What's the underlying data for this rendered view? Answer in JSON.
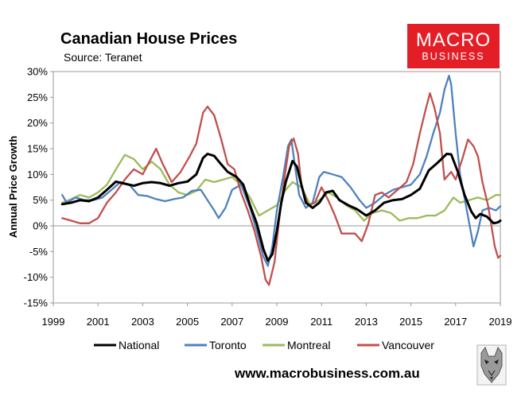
{
  "header": {
    "title": "Canadian House Prices",
    "subtitle": "Source: Teranet"
  },
  "logo": {
    "line1": "MACRO",
    "line2": "BUSINESS",
    "color": "#e41e26"
  },
  "footer": {
    "website": "www.macrobusiness.com.au"
  },
  "chart_data": {
    "type": "line",
    "title": "Canadian House Prices",
    "ylabel": "Annual Price Growth",
    "xlim": [
      1999,
      2019
    ],
    "ylim": [
      -15,
      30
    ],
    "xticks": [
      1999,
      2001,
      2003,
      2005,
      2007,
      2009,
      2011,
      2013,
      2015,
      2017,
      2019
    ],
    "yticks": [
      30,
      25,
      20,
      15,
      10,
      5,
      0,
      -5,
      -10,
      -15
    ],
    "ytick_labels": [
      "30%",
      "25%",
      "20%",
      "15%",
      "10%",
      "5%",
      "0%",
      "-5%",
      "-10%",
      "-15%"
    ],
    "grid": false,
    "legend_position": "bottom",
    "series": [
      {
        "name": "National",
        "color": "#000000",
        "points": [
          [
            1999.4,
            4.2
          ],
          [
            1999.8,
            4.5
          ],
          [
            2000.2,
            5.0
          ],
          [
            2000.6,
            4.8
          ],
          [
            2001.0,
            5.5
          ],
          [
            2001.4,
            7.0
          ],
          [
            2001.8,
            8.6
          ],
          [
            2002.2,
            8.2
          ],
          [
            2002.6,
            7.8
          ],
          [
            2003.0,
            8.3
          ],
          [
            2003.4,
            8.5
          ],
          [
            2003.8,
            8.3
          ],
          [
            2004.2,
            7.8
          ],
          [
            2004.6,
            8.3
          ],
          [
            2005.0,
            8.6
          ],
          [
            2005.4,
            10.0
          ],
          [
            2005.7,
            13.2
          ],
          [
            2005.9,
            14.0
          ],
          [
            2006.2,
            13.6
          ],
          [
            2006.5,
            12.0
          ],
          [
            2006.8,
            10.5
          ],
          [
            2007.2,
            9.5
          ],
          [
            2007.5,
            8.0
          ],
          [
            2007.8,
            4.0
          ],
          [
            2008.1,
            0.5
          ],
          [
            2008.4,
            -4.5
          ],
          [
            2008.6,
            -6.8
          ],
          [
            2008.8,
            -5.5
          ],
          [
            2009.0,
            -1.0
          ],
          [
            2009.2,
            4.5
          ],
          [
            2009.4,
            8.5
          ],
          [
            2009.7,
            12.6
          ],
          [
            2009.9,
            11.5
          ],
          [
            2010.1,
            8.0
          ],
          [
            2010.3,
            4.5
          ],
          [
            2010.6,
            3.5
          ],
          [
            2010.9,
            4.5
          ],
          [
            2011.2,
            6.5
          ],
          [
            2011.5,
            6.8
          ],
          [
            2011.8,
            5.0
          ],
          [
            2012.2,
            4.0
          ],
          [
            2012.6,
            3.2
          ],
          [
            2013.0,
            2.0
          ],
          [
            2013.4,
            3.0
          ],
          [
            2013.8,
            4.5
          ],
          [
            2014.2,
            5.0
          ],
          [
            2014.6,
            5.2
          ],
          [
            2015.0,
            6.0
          ],
          [
            2015.4,
            7.2
          ],
          [
            2015.8,
            10.8
          ],
          [
            2016.2,
            12.3
          ],
          [
            2016.6,
            14.0
          ],
          [
            2016.8,
            13.9
          ],
          [
            2017.1,
            10.5
          ],
          [
            2017.4,
            6.0
          ],
          [
            2017.7,
            2.8
          ],
          [
            2017.9,
            1.5
          ],
          [
            2018.1,
            2.3
          ],
          [
            2018.4,
            1.8
          ],
          [
            2018.7,
            0.5
          ],
          [
            2018.9,
            0.7
          ],
          [
            2019.0,
            1.0
          ]
        ]
      },
      {
        "name": "Toronto",
        "color": "#4f81bd",
        "points": [
          [
            1999.4,
            6.0
          ],
          [
            1999.6,
            4.5
          ],
          [
            2000.0,
            5.5
          ],
          [
            2000.4,
            5.0
          ],
          [
            2000.8,
            5.0
          ],
          [
            2001.2,
            5.5
          ],
          [
            2001.6,
            7.0
          ],
          [
            2002.0,
            8.5
          ],
          [
            2002.4,
            8.0
          ],
          [
            2002.8,
            6.0
          ],
          [
            2003.2,
            5.8
          ],
          [
            2003.6,
            5.2
          ],
          [
            2004.0,
            4.8
          ],
          [
            2004.4,
            5.2
          ],
          [
            2004.8,
            5.5
          ],
          [
            2005.2,
            6.8
          ],
          [
            2005.6,
            7.0
          ],
          [
            2005.9,
            5.0
          ],
          [
            2006.2,
            3.0
          ],
          [
            2006.4,
            1.5
          ],
          [
            2006.7,
            3.5
          ],
          [
            2007.0,
            7.0
          ],
          [
            2007.4,
            8.0
          ],
          [
            2007.8,
            3.5
          ],
          [
            2008.1,
            -1.0
          ],
          [
            2008.4,
            -6.0
          ],
          [
            2008.6,
            -7.8
          ],
          [
            2008.8,
            -4.0
          ],
          [
            2009.0,
            3.0
          ],
          [
            2009.3,
            10.0
          ],
          [
            2009.5,
            15.5
          ],
          [
            2009.65,
            16.8
          ],
          [
            2009.8,
            12.0
          ],
          [
            2010.0,
            6.0
          ],
          [
            2010.3,
            3.5
          ],
          [
            2010.6,
            4.5
          ],
          [
            2010.9,
            9.5
          ],
          [
            2011.1,
            10.5
          ],
          [
            2011.5,
            10.0
          ],
          [
            2011.9,
            9.5
          ],
          [
            2012.3,
            7.5
          ],
          [
            2012.7,
            5.0
          ],
          [
            2013.0,
            3.5
          ],
          [
            2013.4,
            4.5
          ],
          [
            2013.8,
            6.0
          ],
          [
            2014.2,
            7.0
          ],
          [
            2014.6,
            7.5
          ],
          [
            2015.0,
            8.0
          ],
          [
            2015.4,
            10.0
          ],
          [
            2015.7,
            13.5
          ],
          [
            2016.0,
            18.0
          ],
          [
            2016.3,
            22.0
          ],
          [
            2016.5,
            26.5
          ],
          [
            2016.7,
            29.2
          ],
          [
            2016.8,
            27.5
          ],
          [
            2017.0,
            18.0
          ],
          [
            2017.2,
            10.0
          ],
          [
            2017.5,
            3.0
          ],
          [
            2017.8,
            -4.0
          ],
          [
            2018.0,
            -1.0
          ],
          [
            2018.2,
            3.0
          ],
          [
            2018.5,
            3.5
          ],
          [
            2018.8,
            3.0
          ],
          [
            2019.0,
            3.8
          ]
        ]
      },
      {
        "name": "Montreal",
        "color": "#9bbb59",
        "points": [
          [
            1999.4,
            4.5
          ],
          [
            1999.8,
            5.2
          ],
          [
            2000.2,
            6.0
          ],
          [
            2000.6,
            5.5
          ],
          [
            2001.0,
            6.5
          ],
          [
            2001.4,
            8.0
          ],
          [
            2001.8,
            11.0
          ],
          [
            2002.2,
            13.8
          ],
          [
            2002.6,
            13.0
          ],
          [
            2003.0,
            11.0
          ],
          [
            2003.4,
            12.5
          ],
          [
            2003.8,
            11.0
          ],
          [
            2004.2,
            8.0
          ],
          [
            2004.6,
            6.5
          ],
          [
            2005.0,
            6.0
          ],
          [
            2005.4,
            6.8
          ],
          [
            2005.8,
            9.0
          ],
          [
            2006.2,
            8.5
          ],
          [
            2006.6,
            9.0
          ],
          [
            2007.0,
            9.5
          ],
          [
            2007.4,
            8.0
          ],
          [
            2007.8,
            5.5
          ],
          [
            2008.2,
            2.0
          ],
          [
            2008.6,
            3.0
          ],
          [
            2009.0,
            4.0
          ],
          [
            2009.4,
            7.0
          ],
          [
            2009.7,
            8.5
          ],
          [
            2010.1,
            7.5
          ],
          [
            2010.5,
            4.0
          ],
          [
            2010.9,
            5.0
          ],
          [
            2011.3,
            6.5
          ],
          [
            2011.7,
            5.5
          ],
          [
            2012.1,
            4.0
          ],
          [
            2012.5,
            3.0
          ],
          [
            2012.9,
            1.0
          ],
          [
            2013.3,
            2.5
          ],
          [
            2013.7,
            3.0
          ],
          [
            2014.1,
            2.5
          ],
          [
            2014.5,
            1.0
          ],
          [
            2014.9,
            1.5
          ],
          [
            2015.3,
            1.5
          ],
          [
            2015.7,
            2.0
          ],
          [
            2016.1,
            2.0
          ],
          [
            2016.5,
            3.0
          ],
          [
            2016.9,
            5.5
          ],
          [
            2017.2,
            4.5
          ],
          [
            2017.6,
            5.0
          ],
          [
            2018.0,
            5.5
          ],
          [
            2018.4,
            5.0
          ],
          [
            2018.8,
            6.0
          ],
          [
            2019.0,
            6.0
          ]
        ]
      },
      {
        "name": "Vancouver",
        "color": "#c0504d",
        "points": [
          [
            1999.4,
            1.5
          ],
          [
            1999.8,
            1.0
          ],
          [
            2000.2,
            0.5
          ],
          [
            2000.6,
            0.5
          ],
          [
            2001.0,
            1.5
          ],
          [
            2001.4,
            4.5
          ],
          [
            2001.8,
            6.5
          ],
          [
            2002.2,
            9.0
          ],
          [
            2002.6,
            11.0
          ],
          [
            2003.0,
            10.0
          ],
          [
            2003.3,
            12.5
          ],
          [
            2003.6,
            15.0
          ],
          [
            2003.9,
            12.0
          ],
          [
            2004.3,
            8.5
          ],
          [
            2004.7,
            10.5
          ],
          [
            2005.1,
            13.5
          ],
          [
            2005.4,
            16.0
          ],
          [
            2005.7,
            22.0
          ],
          [
            2005.9,
            23.2
          ],
          [
            2006.2,
            21.5
          ],
          [
            2006.5,
            17.0
          ],
          [
            2006.8,
            12.0
          ],
          [
            2007.1,
            11.0
          ],
          [
            2007.4,
            6.5
          ],
          [
            2007.7,
            3.0
          ],
          [
            2008.0,
            -1.0
          ],
          [
            2008.3,
            -6.0
          ],
          [
            2008.5,
            -10.5
          ],
          [
            2008.65,
            -11.5
          ],
          [
            2008.9,
            -7.0
          ],
          [
            2009.1,
            1.0
          ],
          [
            2009.3,
            8.0
          ],
          [
            2009.55,
            15.5
          ],
          [
            2009.75,
            17.0
          ],
          [
            2009.95,
            14.0
          ],
          [
            2010.1,
            8.0
          ],
          [
            2010.4,
            4.0
          ],
          [
            2010.7,
            4.5
          ],
          [
            2011.0,
            7.5
          ],
          [
            2011.3,
            5.0
          ],
          [
            2011.6,
            2.0
          ],
          [
            2011.9,
            -1.5
          ],
          [
            2012.2,
            -1.5
          ],
          [
            2012.5,
            -1.5
          ],
          [
            2012.8,
            -3.0
          ],
          [
            2013.1,
            0.5
          ],
          [
            2013.4,
            6.0
          ],
          [
            2013.7,
            6.5
          ],
          [
            2014.0,
            5.5
          ],
          [
            2014.4,
            7.0
          ],
          [
            2014.8,
            8.5
          ],
          [
            2015.1,
            12.0
          ],
          [
            2015.4,
            18.0
          ],
          [
            2015.65,
            22.5
          ],
          [
            2015.85,
            25.8
          ],
          [
            2016.05,
            23.0
          ],
          [
            2016.3,
            18.0
          ],
          [
            2016.5,
            9.0
          ],
          [
            2016.8,
            10.5
          ],
          [
            2017.0,
            9.0
          ],
          [
            2017.3,
            13.0
          ],
          [
            2017.55,
            16.8
          ],
          [
            2017.8,
            15.5
          ],
          [
            2018.0,
            13.5
          ],
          [
            2018.2,
            8.5
          ],
          [
            2018.45,
            4.0
          ],
          [
            2018.6,
            0.0
          ],
          [
            2018.75,
            -4.0
          ],
          [
            2018.9,
            -6.2
          ],
          [
            2019.0,
            -5.8
          ]
        ]
      }
    ]
  }
}
